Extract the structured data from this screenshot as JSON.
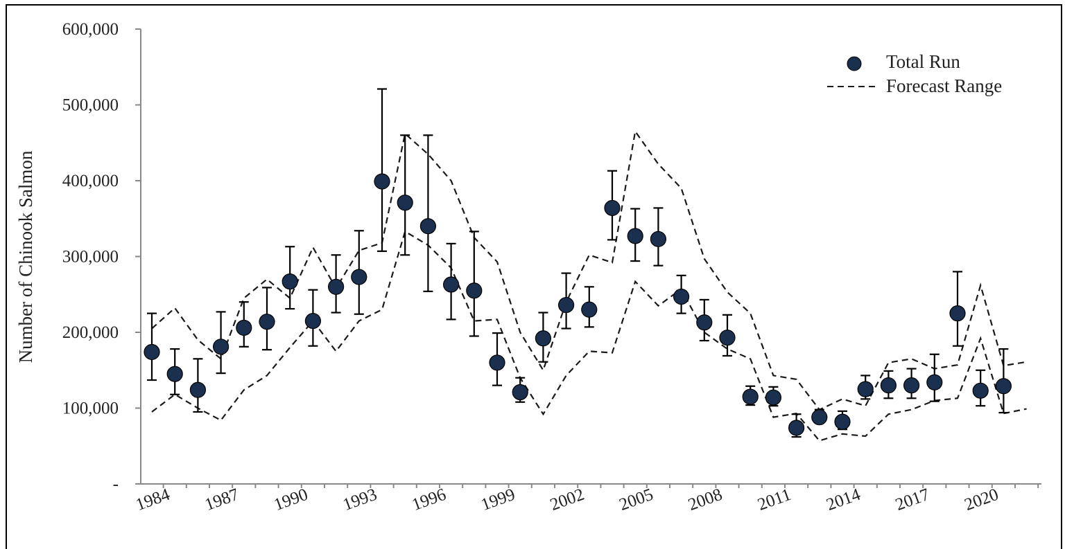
{
  "chart_data": {
    "type": "scatter",
    "ylabel": "Number of Chinook Salmon",
    "xlim": [
      1984,
      2023
    ],
    "ylim": [
      0,
      600000
    ],
    "y_ticks": [
      {
        "value": 0,
        "label": "-"
      },
      {
        "value": 100000,
        "label": "100,000"
      },
      {
        "value": 200000,
        "label": "200,000"
      },
      {
        "value": 300000,
        "label": "300,000"
      },
      {
        "value": 400000,
        "label": "400,000"
      },
      {
        "value": 500000,
        "label": "500,000"
      },
      {
        "value": 600000,
        "label": "600,000"
      }
    ],
    "x_ticks": [
      "1984",
      "1987",
      "1990",
      "1993",
      "1996",
      "1999",
      "2002",
      "2005",
      "2008",
      "2011",
      "2014",
      "2017",
      "2020"
    ],
    "legend": {
      "position": "top-right",
      "total_run_label": "Total Run",
      "forecast_label": "Forecast Range"
    },
    "colors": {
      "marker": "#1b2f4e",
      "line": "#1a1a1a"
    },
    "total_run": {
      "name": "Total Run",
      "x": [
        1984,
        1985,
        1986,
        1987,
        1988,
        1989,
        1990,
        1991,
        1992,
        1993,
        1994,
        1995,
        1996,
        1997,
        1998,
        1999,
        2000,
        2001,
        2002,
        2003,
        2004,
        2005,
        2006,
        2007,
        2008,
        2009,
        2010,
        2011,
        2012,
        2013,
        2014,
        2015,
        2016,
        2017,
        2018,
        2019,
        2020,
        2021
      ],
      "y": [
        174000,
        145000,
        124000,
        181000,
        206000,
        214000,
        267000,
        215000,
        260000,
        273000,
        399000,
        371000,
        340000,
        263000,
        255000,
        160000,
        121000,
        192000,
        236000,
        230000,
        364000,
        327000,
        323000,
        247000,
        213000,
        193000,
        115000,
        114000,
        74000,
        88000,
        82000,
        125000,
        130000,
        130000,
        134000,
        225000,
        123000,
        129000
      ],
      "err_low": [
        137000,
        118000,
        95000,
        146000,
        181000,
        177000,
        231000,
        182000,
        226000,
        224000,
        307000,
        302000,
        254000,
        217000,
        195000,
        130000,
        108000,
        161000,
        205000,
        207000,
        322000,
        294000,
        288000,
        225000,
        189000,
        169000,
        104000,
        103000,
        62000,
        82000,
        72000,
        112000,
        113000,
        113000,
        109000,
        182000,
        103000,
        94000
      ],
      "err_high": [
        225000,
        178000,
        165000,
        227000,
        240000,
        259000,
        313000,
        256000,
        302000,
        334000,
        521000,
        460000,
        460000,
        317000,
        333000,
        199000,
        140000,
        226000,
        278000,
        260000,
        413000,
        363000,
        364000,
        275000,
        243000,
        223000,
        129000,
        128000,
        92000,
        98000,
        96000,
        143000,
        149000,
        152000,
        171000,
        280000,
        150000,
        178000
      ]
    },
    "forecast_upper": {
      "name": "Forecast Range",
      "x": [
        1984,
        1985,
        1986,
        1987,
        1988,
        1989,
        1990,
        1991,
        1992,
        1993,
        1994,
        1995,
        1996,
        1997,
        1998,
        1999,
        2000,
        2001,
        2002,
        2003,
        2004,
        2005,
        2006,
        2007,
        2008,
        2009,
        2010,
        2011,
        2012,
        2013,
        2014,
        2015,
        2016,
        2017,
        2018,
        2019,
        2020,
        2021,
        2022
      ],
      "y": [
        205000,
        232000,
        190000,
        165000,
        245000,
        270000,
        245000,
        312000,
        258000,
        308000,
        318000,
        462000,
        435000,
        400000,
        325000,
        293000,
        200000,
        150000,
        240000,
        302000,
        292000,
        465000,
        422000,
        390000,
        297000,
        253000,
        225000,
        143000,
        138000,
        98000,
        112000,
        103000,
        160000,
        165000,
        152000,
        157000,
        262000,
        156000,
        161000
      ]
    },
    "forecast_lower": {
      "name": "Forecast Range",
      "x": [
        1984,
        1985,
        1986,
        1987,
        1988,
        1989,
        1990,
        1991,
        1992,
        1993,
        1994,
        1995,
        1996,
        1997,
        1998,
        1999,
        2000,
        2001,
        2002,
        2003,
        2004,
        2005,
        2006,
        2007,
        2008,
        2009,
        2010,
        2011,
        2012,
        2013,
        2014,
        2015,
        2016,
        2017,
        2018,
        2019,
        2020,
        2021,
        2022
      ],
      "y": [
        95000,
        118000,
        100000,
        84000,
        124000,
        143000,
        180000,
        215000,
        175000,
        215000,
        230000,
        333000,
        315000,
        285000,
        215000,
        217000,
        140000,
        92000,
        143000,
        175000,
        173000,
        267000,
        235000,
        257000,
        200000,
        178000,
        165000,
        88000,
        93000,
        57000,
        66000,
        63000,
        92000,
        98000,
        110000,
        113000,
        192000,
        93000,
        99000
      ]
    }
  }
}
